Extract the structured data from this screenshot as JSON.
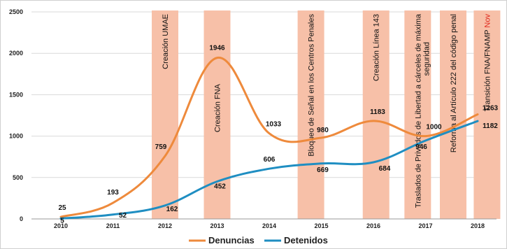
{
  "chart_data": {
    "type": "line",
    "x": [
      "2010",
      "2011",
      "2012",
      "2013",
      "2014",
      "2015",
      "2016",
      "2017",
      "2018"
    ],
    "ylim": [
      0,
      2500
    ],
    "yticks": [
      0,
      500,
      1000,
      1500,
      2000,
      2500
    ],
    "grid": true,
    "legend_position": "bottom",
    "series": [
      {
        "name": "Denuncias",
        "color": "#ee8a3c",
        "values": [
          25,
          193,
          759,
          1946,
          1033,
          980,
          1183,
          1000,
          1263
        ]
      },
      {
        "name": "Detenidos",
        "color": "#1f8ec2",
        "values": [
          5,
          52,
          162,
          452,
          606,
          669,
          684,
          946,
          1182
        ]
      }
    ],
    "events": [
      {
        "label": "Creación UMAE",
        "x": "2012",
        "color": "#f7c0a8"
      },
      {
        "label": "Creación FNA",
        "x": "2013",
        "color": "#f7c0a8"
      },
      {
        "label": "Bloqueo de Señal en los Centros Penales",
        "x": "2015",
        "color": "#f7c0a8"
      },
      {
        "label": "Creación Línea 143",
        "x": "2016",
        "color": "#f7c0a8"
      },
      {
        "label": "Traslados de Privados de Libertad a cárceles de máxima",
        "label2": "seguridad",
        "x": "2017",
        "color": "#f7c0a8"
      },
      {
        "label": "Reforma al Artículo 222 del código penal",
        "x": "2017.5",
        "color": "#f7c0a8"
      },
      {
        "label": "Transición FNA/FNAMP",
        "label_highlight": "Nov",
        "x": "2018",
        "color": "#f7c0a8",
        "highlight_color": "#e0281c"
      }
    ]
  }
}
